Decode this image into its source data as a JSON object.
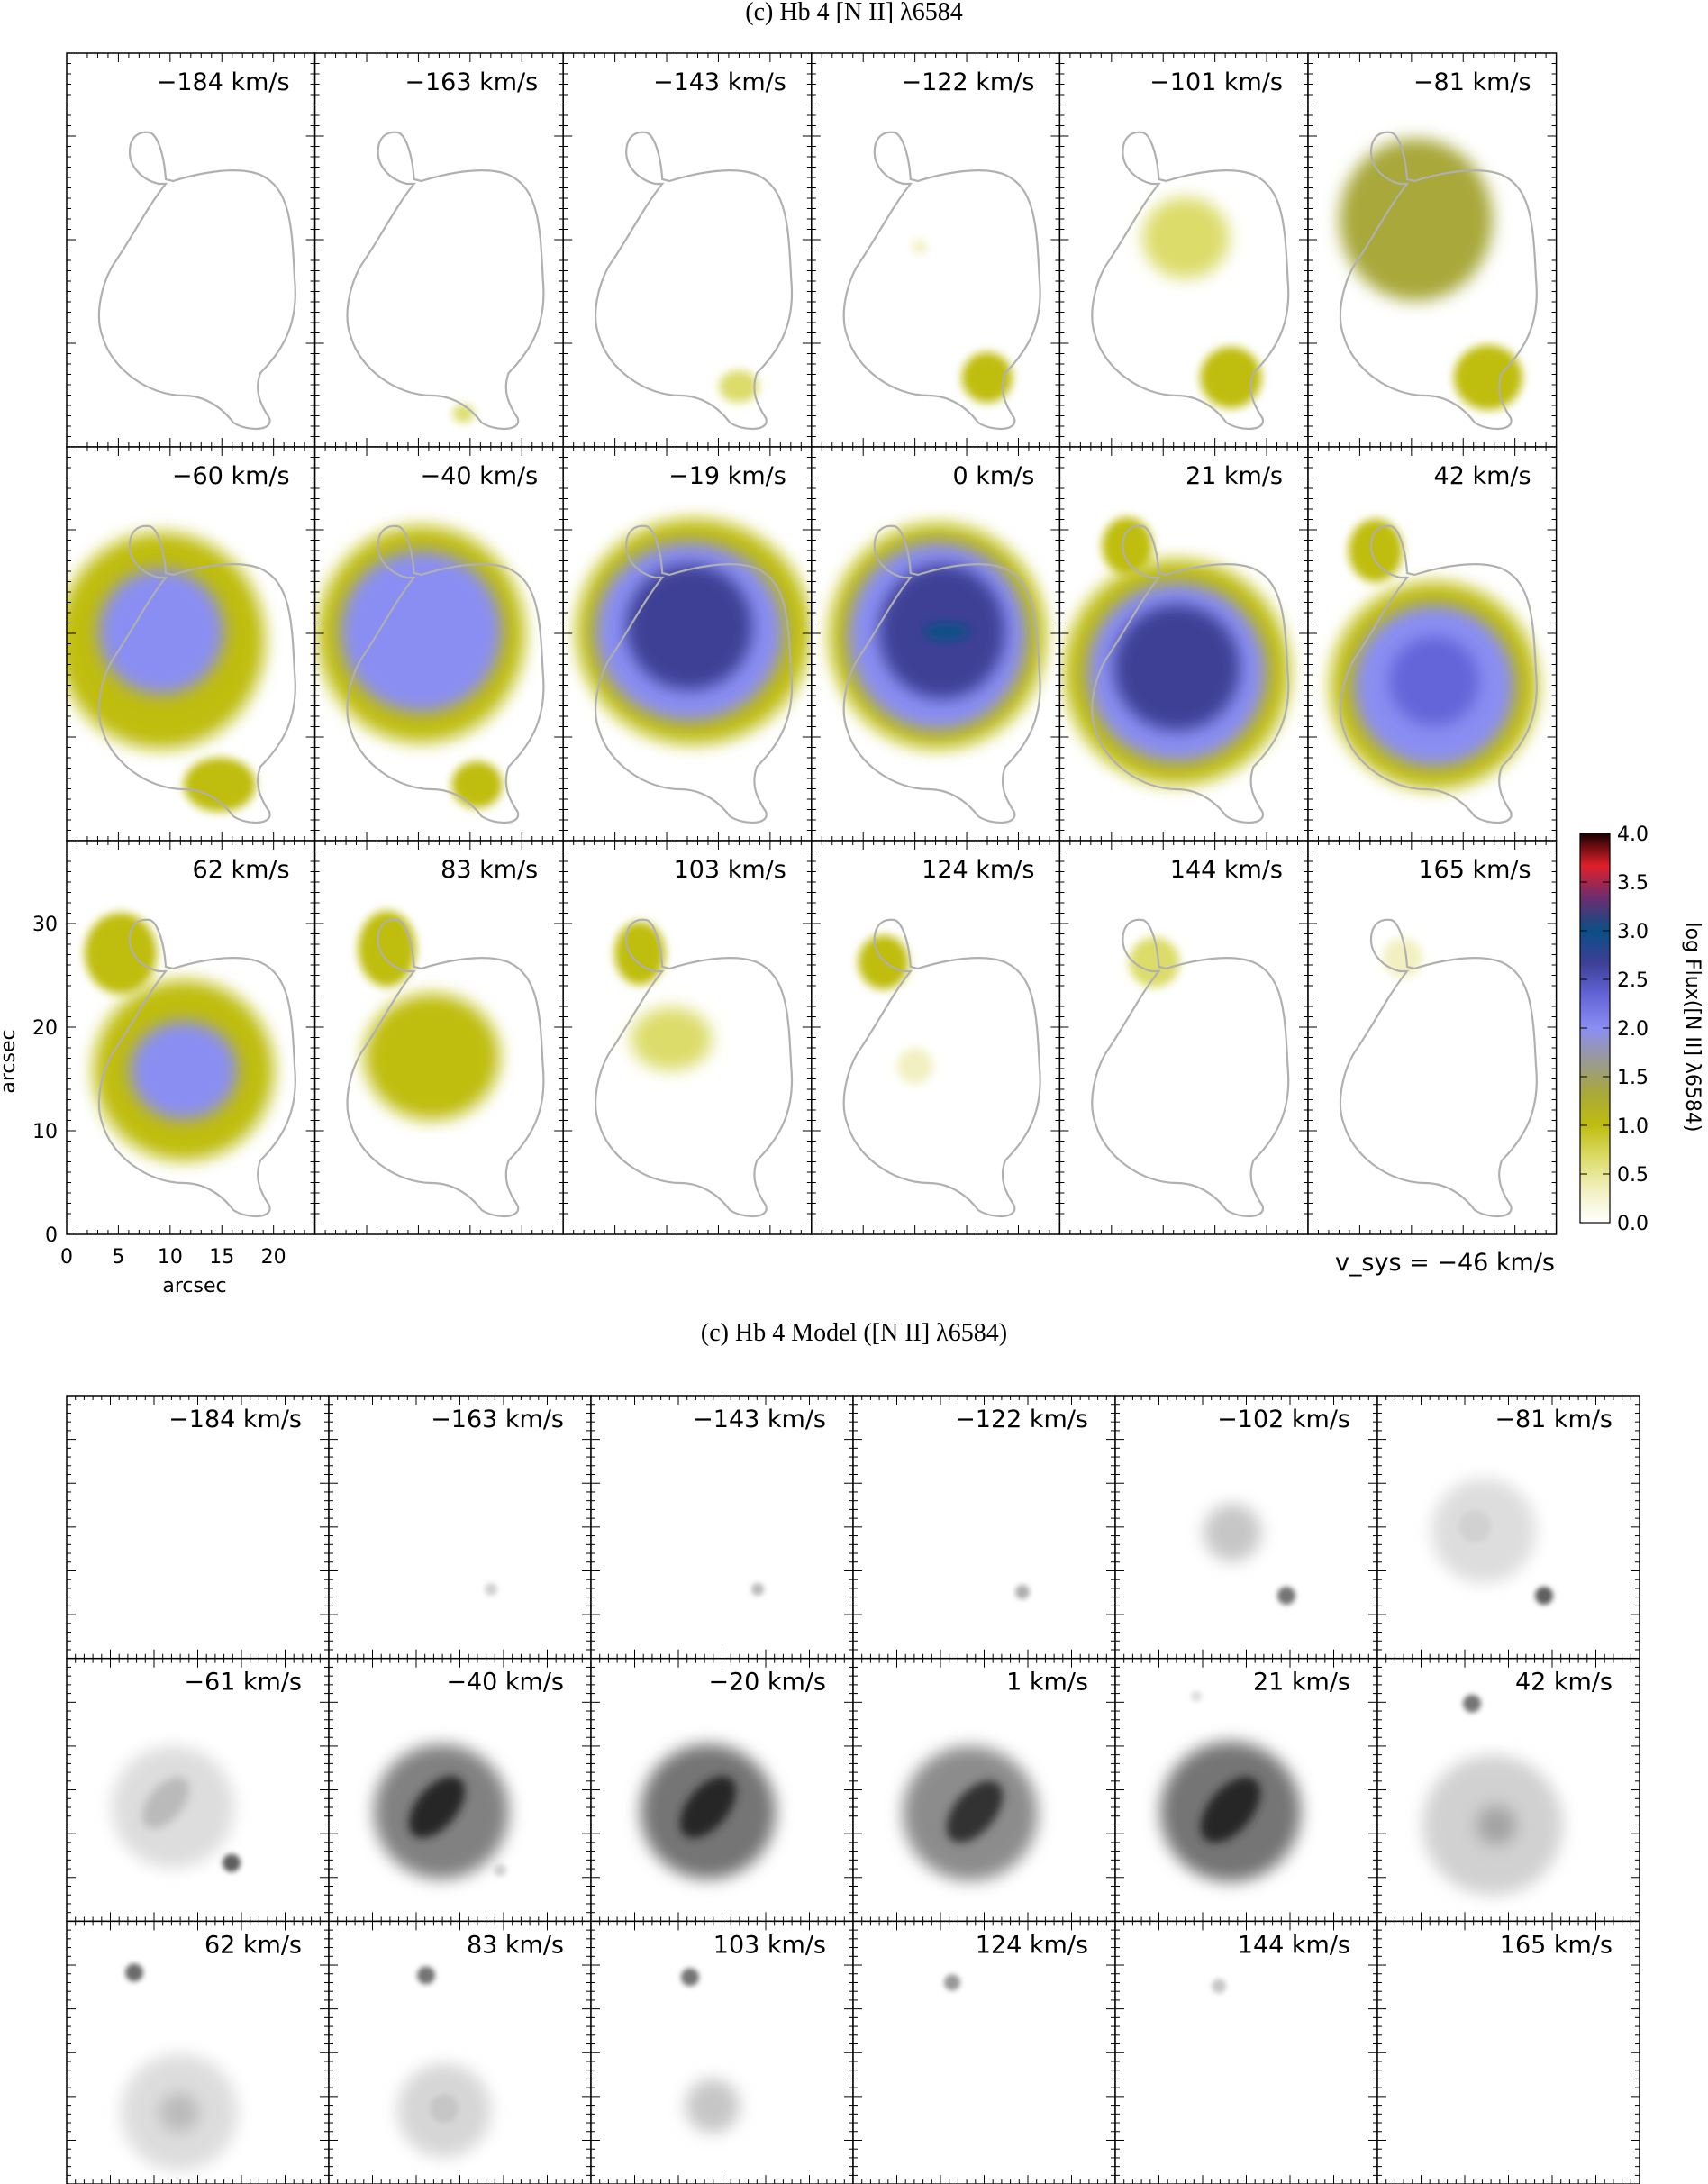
{
  "chart_data": [
    {
      "type": "heatmap",
      "title": "(c) Hb 4 [N II] λ6584",
      "xlabel": "arcsec",
      "ylabel": "arcsec",
      "x_ticks": [
        "0",
        "5",
        "10",
        "15",
        "20"
      ],
      "y_ticks": [
        "0",
        "10",
        "20",
        "30"
      ],
      "xlim": [
        0,
        24
      ],
      "ylim": [
        0,
        38
      ],
      "grid_rows": 3,
      "grid_cols": 6,
      "panels": [
        {
          "label": "−184 km/s",
          "velocity": -184
        },
        {
          "label": "−163 km/s",
          "velocity": -163
        },
        {
          "label": "−143 km/s",
          "velocity": -143
        },
        {
          "label": "−122 km/s",
          "velocity": -122
        },
        {
          "label": "−101 km/s",
          "velocity": -101
        },
        {
          "label": "−81 km/s",
          "velocity": -81
        },
        {
          "label": "−60 km/s",
          "velocity": -60
        },
        {
          "label": "−40 km/s",
          "velocity": -40
        },
        {
          "label": "−19 km/s",
          "velocity": -19
        },
        {
          "label": "0 km/s",
          "velocity": 0
        },
        {
          "label": "21 km/s",
          "velocity": 21
        },
        {
          "label": "42 km/s",
          "velocity": 42
        },
        {
          "label": "62 km/s",
          "velocity": 62
        },
        {
          "label": "83 km/s",
          "velocity": 83
        },
        {
          "label": "103 km/s",
          "velocity": 103
        },
        {
          "label": "124 km/s",
          "velocity": 124
        },
        {
          "label": "144 km/s",
          "velocity": 144
        },
        {
          "label": "165 km/s",
          "velocity": 165
        }
      ],
      "colorbar": {
        "label": "log Flux([N II] λ6584)",
        "range": [
          0.0,
          4.0
        ],
        "ticks": [
          "0.0",
          "0.5",
          "1.0",
          "1.5",
          "2.0",
          "2.5",
          "3.0",
          "3.5",
          "4.0"
        ]
      },
      "vsys_label": "v_sys = −46 km/s",
      "vsys_value": -46
    },
    {
      "type": "heatmap",
      "title": "(c) Hb 4 Model ([N II] λ6584)",
      "grid_rows": 3,
      "grid_cols": 6,
      "panels": [
        {
          "label": "−184 km/s",
          "velocity": -184
        },
        {
          "label": "−163 km/s",
          "velocity": -163
        },
        {
          "label": "−143 km/s",
          "velocity": -143
        },
        {
          "label": "−122 km/s",
          "velocity": -122
        },
        {
          "label": "−102 km/s",
          "velocity": -102
        },
        {
          "label": "−81 km/s",
          "velocity": -81
        },
        {
          "label": "−61 km/s",
          "velocity": -61
        },
        {
          "label": "−40 km/s",
          "velocity": -40
        },
        {
          "label": "−20 km/s",
          "velocity": -20
        },
        {
          "label": "1 km/s",
          "velocity": 1
        },
        {
          "label": "21 km/s",
          "velocity": 21
        },
        {
          "label": "42 km/s",
          "velocity": 42
        },
        {
          "label": "62 km/s",
          "velocity": 62
        },
        {
          "label": "83 km/s",
          "velocity": 83
        },
        {
          "label": "103 km/s",
          "velocity": 103
        },
        {
          "label": "124 km/s",
          "velocity": 124
        },
        {
          "label": "144 km/s",
          "velocity": 144
        },
        {
          "label": "165 km/s",
          "velocity": 165
        }
      ]
    }
  ],
  "colors": {
    "contour": "#b0b0b0",
    "frame": "#000000",
    "colormap": [
      "#ffffff",
      "#f2f0c0",
      "#dcdc6a",
      "#bfbd10",
      "#a8a83a",
      "#9a9a96",
      "#8a8ef2",
      "#6465d8",
      "#3d3f95",
      "#0a4f86",
      "#6a2d70",
      "#e0202a",
      "#1a0000"
    ]
  }
}
